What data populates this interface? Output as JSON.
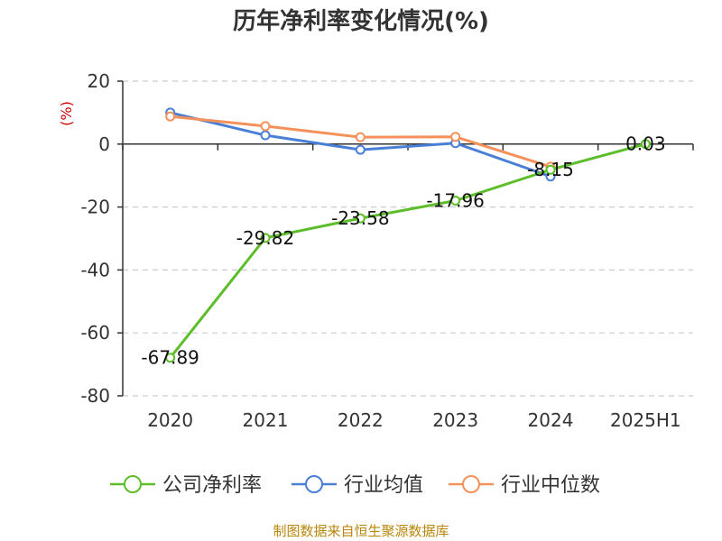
{
  "chart_data": {
    "type": "line",
    "title": "历年净利率变化情况(%)",
    "ylabel": "(%)",
    "xlabel": "",
    "categories": [
      "2020",
      "2021",
      "2022",
      "2023",
      "2024",
      "2025H1"
    ],
    "ylim": [
      -80,
      20
    ],
    "yticks": [
      20,
      0,
      -20,
      -40,
      -60,
      -80
    ],
    "grid": true,
    "legend_position": "bottom",
    "series": [
      {
        "name": "公司净利率",
        "color": "#5dbd2b",
        "values": [
          -67.89,
          -29.82,
          -23.58,
          -17.96,
          -8.15,
          0.03
        ],
        "labels": [
          "-67.89",
          "-29.82",
          "-23.58",
          "-17.96",
          "-8.15",
          "0.03"
        ]
      },
      {
        "name": "行业均值",
        "color": "#4a7fd6",
        "values": [
          10.0,
          2.8,
          -1.8,
          0.3,
          -10.3,
          null
        ]
      },
      {
        "name": "行业中位数",
        "color": "#f4915a",
        "values": [
          8.8,
          5.7,
          2.2,
          2.3,
          -7.2,
          null
        ]
      }
    ],
    "source": "制图数据来自恒生聚源数据库"
  }
}
